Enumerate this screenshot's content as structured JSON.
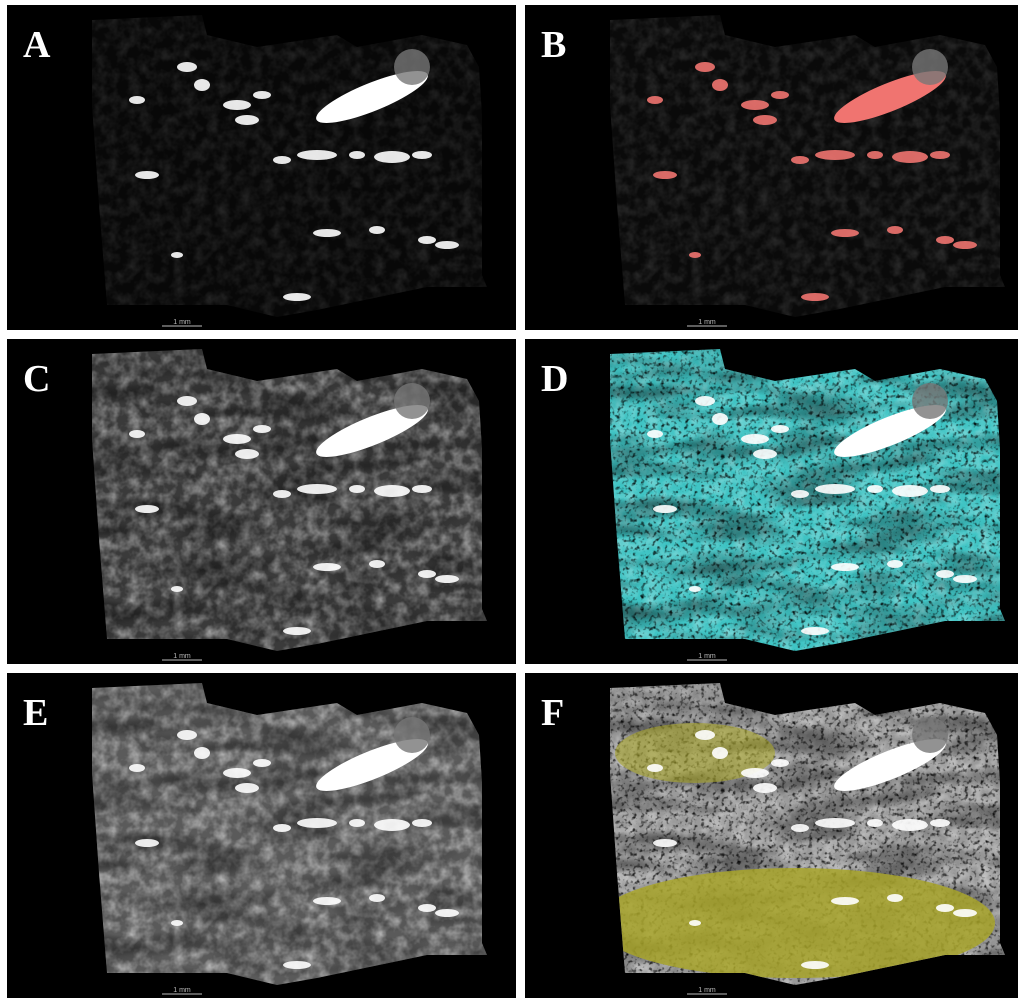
{
  "panels": [
    {
      "label": "A",
      "scale_bar": "1 mm"
    },
    {
      "label": "B",
      "scale_bar": "1 mm"
    },
    {
      "label": "C",
      "scale_bar": "1 mm"
    },
    {
      "label": "D",
      "scale_bar": "1 mm"
    },
    {
      "label": "E",
      "scale_bar": "1 mm"
    },
    {
      "label": "F",
      "scale_bar": "1 mm"
    }
  ]
}
